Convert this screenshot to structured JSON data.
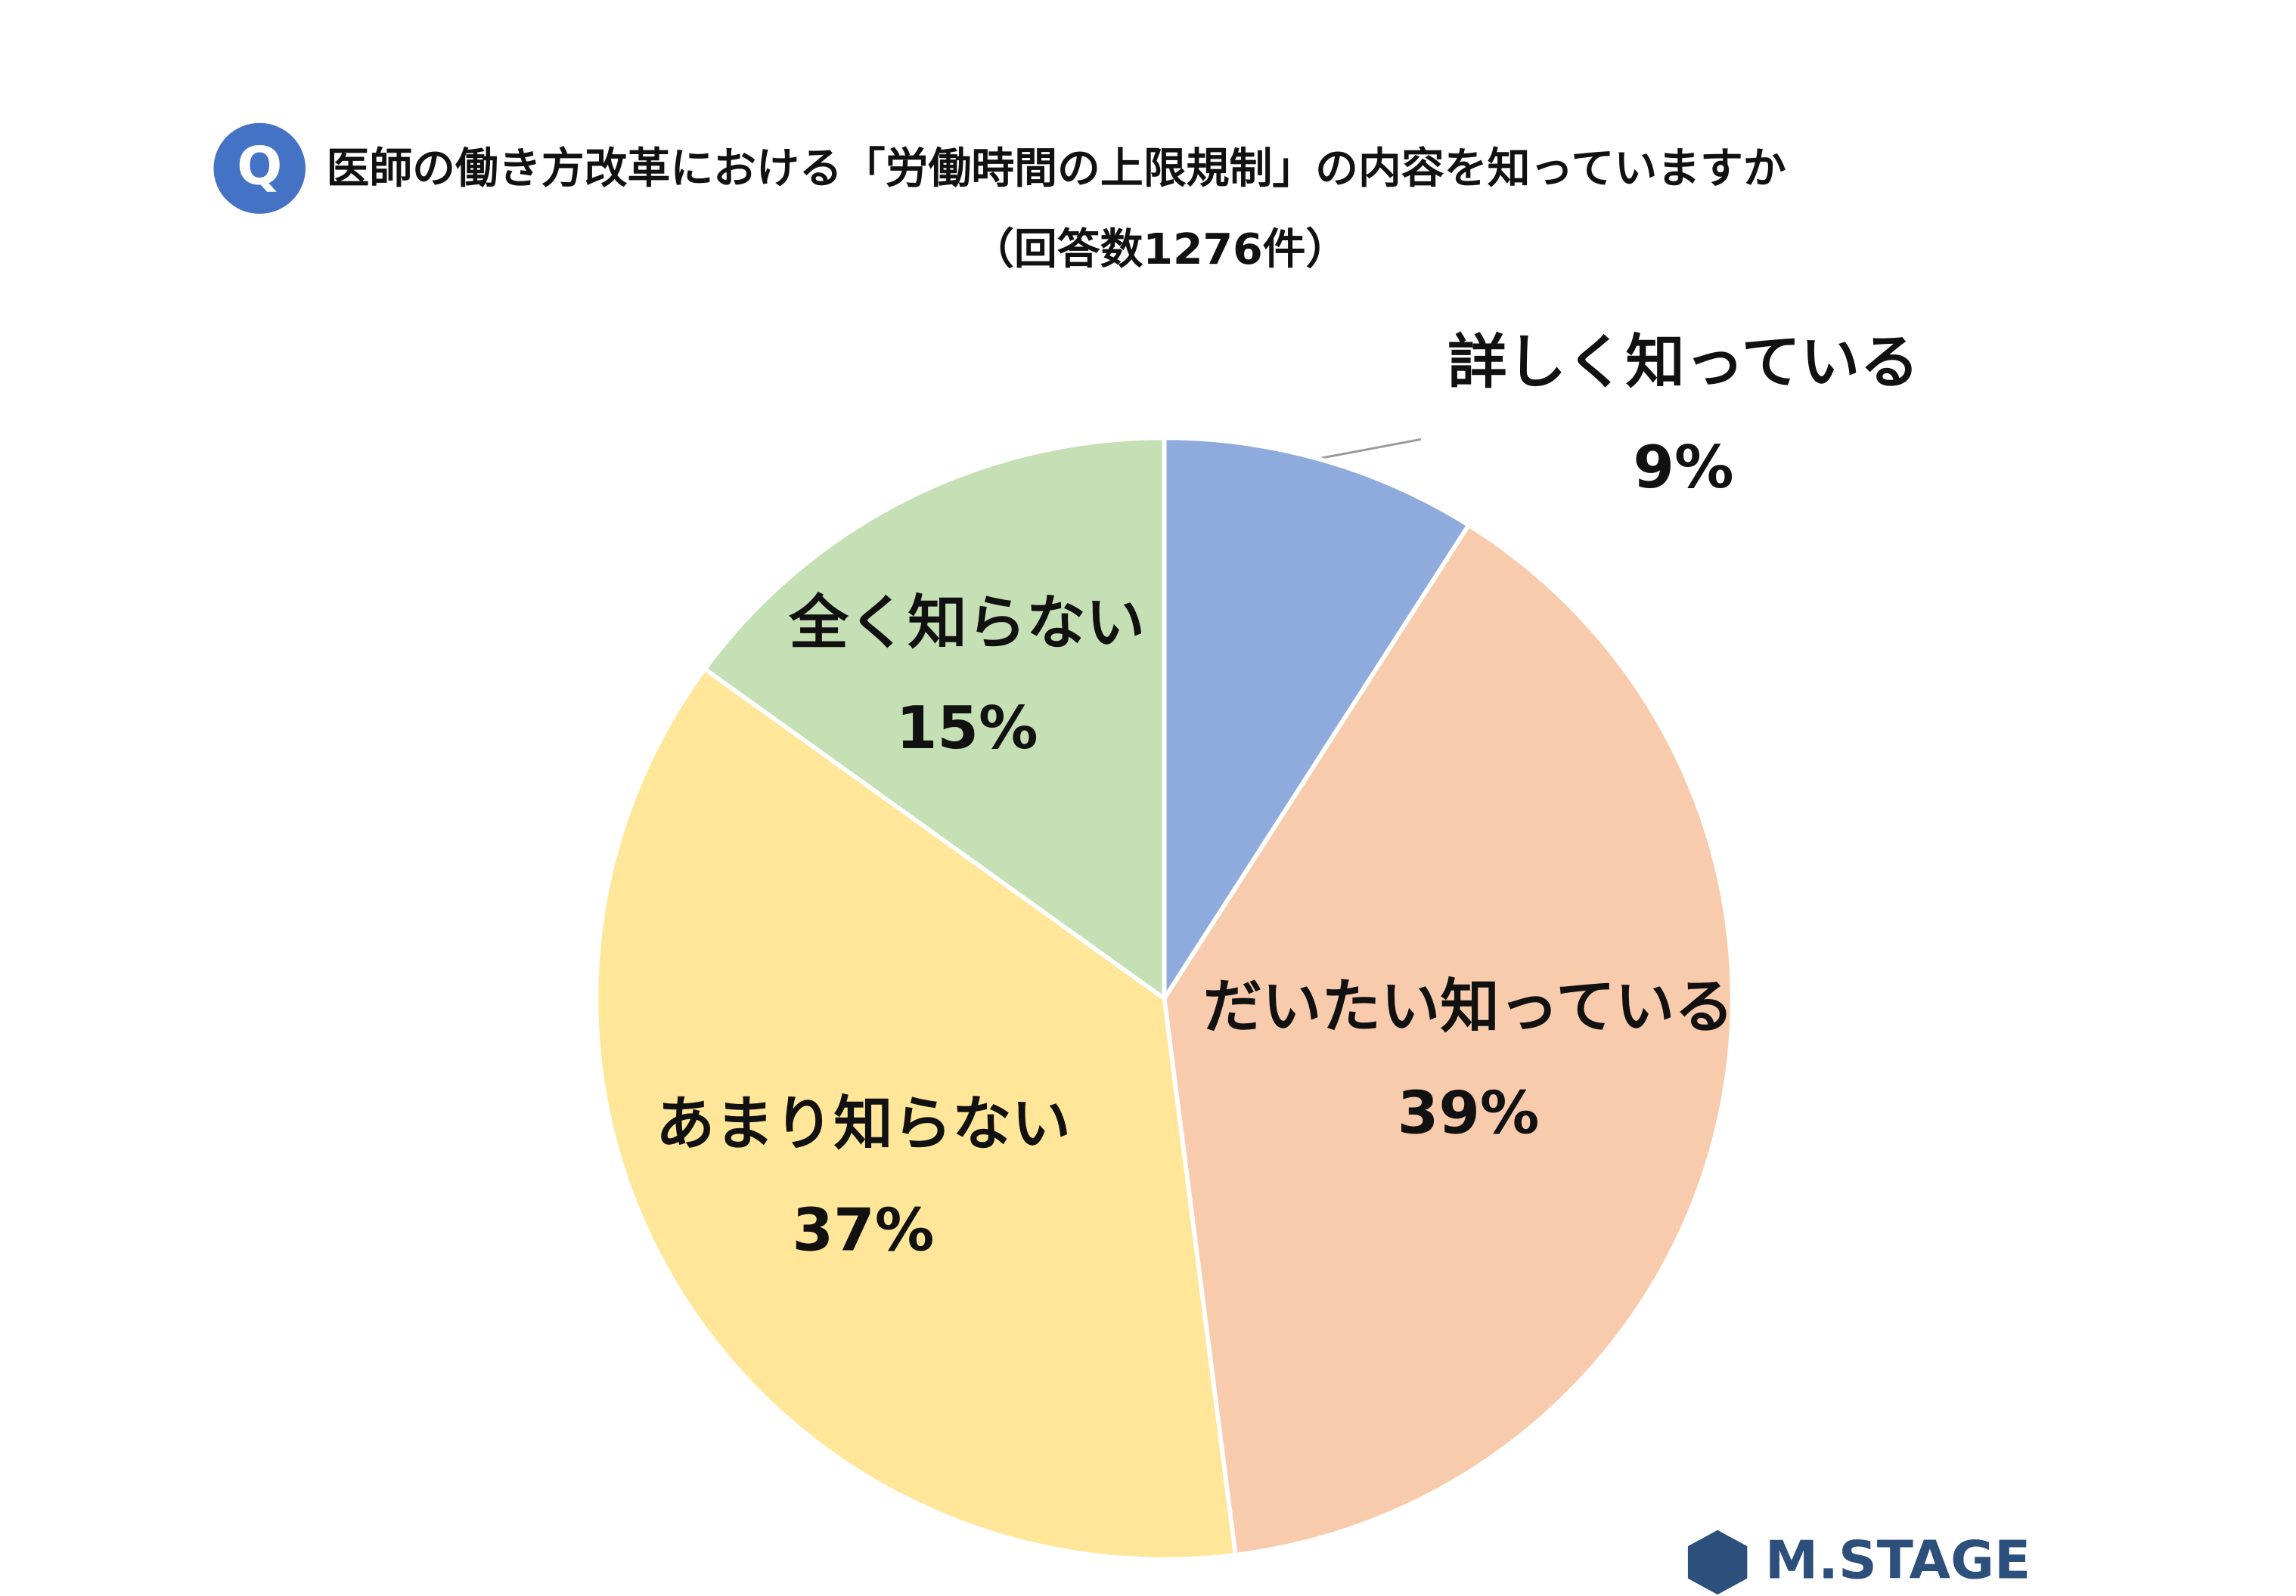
{
  "chart_data": {
    "type": "pie",
    "title": "医師の働き方改革における「労働時間の上限規制」の内容を知っていますか",
    "subtitle": "（回答数1276件）",
    "icon": "Q",
    "logo": "M.STAGE",
    "categories": [
      "詳しく知っている",
      "だいたい知っている",
      "あまり知らない",
      "全く知らない"
    ],
    "values": [
      9,
      39,
      37,
      15
    ],
    "value_labels": [
      "9%",
      "39%",
      "37%",
      "15%"
    ],
    "colors": [
      "#8faadc",
      "#f8cbad",
      "#ffe699",
      "#c5e0b4"
    ]
  }
}
